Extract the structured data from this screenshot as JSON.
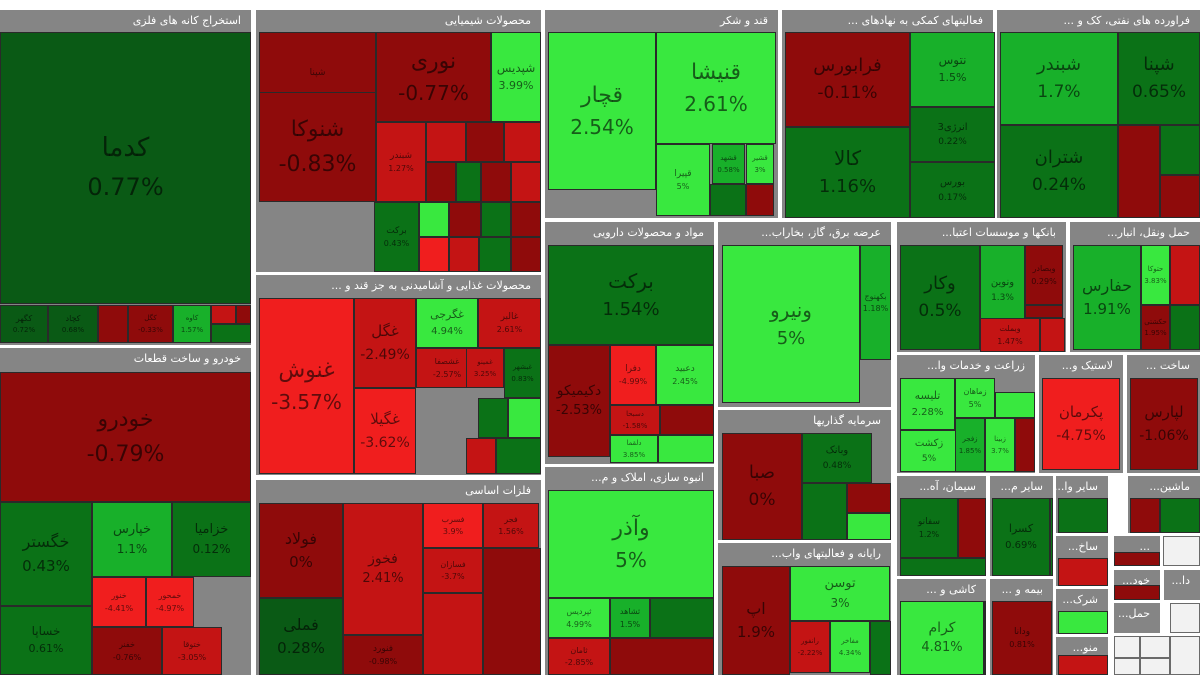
{
  "colors": {
    "up_light": "#39e83f",
    "up_mid": "#18b02a",
    "up_dark": "#0b7217",
    "neutral": "#0a5a15",
    "down_dark": "#8f0b0b",
    "down_mid": "#c41414",
    "down_light": "#f01e1e",
    "header": "#858585",
    "gap": "#ffffff"
  },
  "sectors": [
    {
      "title": "استخراج کانه های فلزی"
    },
    {
      "title": "محصولات شیمیایی"
    },
    {
      "title": "قند و شکر"
    },
    {
      "title": "فعالیتهای کمکی به نهادهای ..."
    },
    {
      "title": "فراورده های نفتی، کک و ..."
    },
    {
      "title": "خودرو و ساخت قطعات"
    },
    {
      "title": "محصولات غذایی و آشامیدنی به جز قند و ..."
    },
    {
      "title": "مواد و محصولات دارویی"
    },
    {
      "title": "عرضه برق، گاز، بخاراب..."
    },
    {
      "title": "بانکها و موسسات اعتبا..."
    },
    {
      "title": "حمل ونقل، انبار..."
    },
    {
      "title": "زراعت و خدمات وا..."
    },
    {
      "title": "لاستیک و..."
    },
    {
      "title": "ساخت ..."
    },
    {
      "title": "فلزات اساسی"
    },
    {
      "title": "سرمایه گذاریها"
    },
    {
      "title": "انبوه سازی، املاک و م..."
    },
    {
      "title": "سیمان، آه..."
    },
    {
      "title": "سایر م..."
    },
    {
      "title": "سایر وا..."
    },
    {
      "title": "ماشین..."
    },
    {
      "title": "رایانه و فعالیتهای واب..."
    },
    {
      "title": "کاشی و ..."
    },
    {
      "title": "بیمه و ..."
    },
    {
      "title": "ساخ..."
    },
    {
      "title": "..."
    },
    {
      "title": "شرک..."
    },
    {
      "title": "خود..."
    },
    {
      "title": "دا..."
    },
    {
      "title": "منو..."
    },
    {
      "title": "حمل..."
    }
  ],
  "chart_data": {
    "type": "heatmap",
    "tiles": [
      {
        "sector": "استخراج کانه های فلزی",
        "symbol": "کدما",
        "pct": "0.77%",
        "value": 0.77,
        "shade": "neutral"
      },
      {
        "sector": "استخراج کانه های فلزی",
        "symbol": "کگهر",
        "pct": "0.72%",
        "value": 0.72,
        "shade": "neutral"
      },
      {
        "sector": "استخراج کانه های فلزی",
        "symbol": "کچاد",
        "pct": "0.68%",
        "value": 0.68,
        "shade": "neutral"
      },
      {
        "sector": "استخراج کانه های فلزی",
        "symbol": "کگل",
        "pct": "-0.33%",
        "value": -0.33,
        "shade": "down_dark"
      },
      {
        "sector": "استخراج کانه های فلزی",
        "symbol": "کاوه",
        "pct": "1.57%",
        "value": 1.57,
        "shade": "up_mid"
      },
      {
        "sector": "محصولات شیمیایی",
        "symbol": "شپنا",
        "pct": "",
        "shade": "down_dark"
      },
      {
        "sector": "محصولات شیمیایی",
        "symbol": "نوری",
        "pct": "-0.77%",
        "value": -0.77,
        "shade": "down_dark"
      },
      {
        "sector": "محصولات شیمیایی",
        "symbol": "شپدیس",
        "pct": "3.99%",
        "value": 3.99,
        "shade": "up_light"
      },
      {
        "sector": "محصولات شیمیایی",
        "symbol": "شنوکا",
        "pct": "-0.83%",
        "value": -0.83,
        "shade": "down_dark"
      },
      {
        "sector": "محصولات شیمیایی",
        "symbol": "شبندر",
        "pct": "1.27%",
        "value": 1.27,
        "shade": "down_mid"
      },
      {
        "sector": "محصولات شیمیایی",
        "symbol": "برکت",
        "pct": "0.43%",
        "value": 0.43,
        "shade": "up_dark"
      },
      {
        "sector": "قند و شکر",
        "symbol": "قچار",
        "pct": "2.54%",
        "value": 2.54,
        "shade": "up_light"
      },
      {
        "sector": "قند و شکر",
        "symbol": "قنیشا",
        "pct": "2.61%",
        "value": 2.61,
        "shade": "up_light"
      },
      {
        "sector": "قند و شکر",
        "symbol": "قپیرا",
        "pct": "5%",
        "value": 5,
        "shade": "up_light"
      },
      {
        "sector": "قند و شکر",
        "symbol": "قشهد",
        "pct": "0.58%",
        "value": 0.58,
        "shade": "up_mid"
      },
      {
        "sector": "قند و شکر",
        "symbol": "قشیر",
        "pct": "3%",
        "value": 3,
        "shade": "up_light"
      },
      {
        "sector": "فعالیتهای کمکی به نهادهای ...",
        "symbol": "فرابورس",
        "pct": "-0.11%",
        "value": -0.11,
        "shade": "down_dark"
      },
      {
        "sector": "فعالیتهای کمکی به نهادهای ...",
        "symbol": "نتوس",
        "pct": "1.5%",
        "value": 1.5,
        "shade": "up_mid"
      },
      {
        "sector": "فعالیتهای کمکی به نهادهای ...",
        "symbol": "کالا",
        "pct": "1.16%",
        "value": 1.16,
        "shade": "up_dark"
      },
      {
        "sector": "فعالیتهای کمکی به نهادهای ...",
        "symbol": "انرژی3",
        "pct": "0.22%",
        "value": 0.22,
        "shade": "up_dark"
      },
      {
        "sector": "فعالیتهای کمکی به نهادهای ...",
        "symbol": "بورس",
        "pct": "0.17%",
        "value": 0.17,
        "shade": "up_dark"
      },
      {
        "sector": "فراورده های نفتی، کک و ...",
        "symbol": "شبندر",
        "pct": "1.7%",
        "value": 1.7,
        "shade": "up_mid"
      },
      {
        "sector": "فراورده های نفتی، کک و ...",
        "symbol": "شپنا",
        "pct": "0.65%",
        "value": 0.65,
        "shade": "up_dark"
      },
      {
        "sector": "فراورده های نفتی، کک و ...",
        "symbol": "شتران",
        "pct": "0.24%",
        "value": 0.24,
        "shade": "up_dark"
      },
      {
        "sector": "خودرو و ساخت قطعات",
        "symbol": "خودرو",
        "pct": "-0.79%",
        "value": -0.79,
        "shade": "down_dark"
      },
      {
        "sector": "خودرو و ساخت قطعات",
        "symbol": "خگستر",
        "pct": "0.43%",
        "value": 0.43,
        "shade": "up_dark"
      },
      {
        "sector": "خودرو و ساخت قطعات",
        "symbol": "خساپا",
        "pct": "0.61%",
        "value": 0.61,
        "shade": "up_dark"
      },
      {
        "sector": "خودرو و ساخت قطعات",
        "symbol": "خپارس",
        "pct": "1.1%",
        "value": 1.1,
        "shade": "up_mid"
      },
      {
        "sector": "خودرو و ساخت قطعات",
        "symbol": "خزامیا",
        "pct": "0.12%",
        "value": 0.12,
        "shade": "up_dark"
      },
      {
        "sector": "خودرو و ساخت قطعات",
        "symbol": "خنور",
        "pct": "-4.41%",
        "value": -4.41,
        "shade": "down_light"
      },
      {
        "sector": "خودرو و ساخت قطعات",
        "symbol": "خمحور",
        "pct": "-4.97%",
        "value": -4.97,
        "shade": "down_light"
      },
      {
        "sector": "خودرو و ساخت قطعات",
        "symbol": "خفنر",
        "pct": "-0.76%",
        "value": -0.76,
        "shade": "down_dark"
      },
      {
        "sector": "خودرو و ساخت قطعات",
        "symbol": "ختوقا",
        "pct": "-3.05%",
        "value": -3.05,
        "shade": "down_mid"
      },
      {
        "sector": "محصولات غذایی و آشامیدنی به جز قند و ...",
        "symbol": "غنوش",
        "pct": "-3.57%",
        "value": -3.57,
        "shade": "down_light"
      },
      {
        "sector": "محصولات غذایی و آشامیدنی به جز قند و ...",
        "symbol": "غگل",
        "pct": "-2.49%",
        "value": -2.49,
        "shade": "down_mid"
      },
      {
        "sector": "محصولات غذایی و آشامیدنی به جز قند و ...",
        "symbol": "غگرجی",
        "pct": "4.94%",
        "value": 4.94,
        "shade": "up_light"
      },
      {
        "sector": "محصولات غذایی و آشامیدنی به جز قند و ...",
        "symbol": "غالبر",
        "pct": "2.61%",
        "value": 2.61,
        "shade": "down_mid"
      },
      {
        "sector": "محصولات غذایی و آشامیدنی به جز قند و ...",
        "symbol": "غگیلا",
        "pct": "-3.62%",
        "value": -3.62,
        "shade": "down_light"
      },
      {
        "sector": "محصولات غذایی و آشامیدنی به جز قند و ...",
        "symbol": "غشصفا",
        "pct": "-2.57%",
        "value": -2.57,
        "shade": "down_mid"
      },
      {
        "sector": "محصولات غذایی و آشامیدنی به جز قند و ...",
        "symbol": "غمینو",
        "pct": "3.25%",
        "value": 3.25,
        "shade": "down_mid"
      },
      {
        "sector": "محصولات غذایی و آشامیدنی به جز قند و ...",
        "symbol": "غبشهر",
        "pct": "0.83%",
        "value": 0.83,
        "shade": "up_dark"
      },
      {
        "sector": "مواد و محصولات دارویی",
        "symbol": "برکت",
        "pct": "1.54%",
        "value": 1.54,
        "shade": "up_dark"
      },
      {
        "sector": "مواد و محصولات دارویی",
        "symbol": "دکیمیکو",
        "pct": "-2.53%",
        "value": -2.53,
        "shade": "down_dark"
      },
      {
        "sector": "مواد و محصولات دارویی",
        "symbol": "دفرا",
        "pct": "-4.99%",
        "value": -4.99,
        "shade": "down_light"
      },
      {
        "sector": "مواد و محصولات دارویی",
        "symbol": "دعبید",
        "pct": "2.45%",
        "value": 2.45,
        "shade": "up_light"
      },
      {
        "sector": "مواد و محصولات دارویی",
        "symbol": "دسبحا",
        "pct": "-1.58%",
        "value": -1.58,
        "shade": "down_mid"
      },
      {
        "sector": "مواد و محصولات دارویی",
        "symbol": "دلقما",
        "pct": "3.85%",
        "value": 3.85,
        "shade": "up_light"
      },
      {
        "sector": "عرضه برق، گاز، بخاراب...",
        "symbol": "ونیرو",
        "pct": "5%",
        "value": 5,
        "shade": "up_light"
      },
      {
        "sector": "عرضه برق، گاز، بخاراب...",
        "symbol": "بکهنوج",
        "pct": "1.18%",
        "value": 1.18,
        "shade": "up_mid"
      },
      {
        "sector": "بانکها و موسسات اعتبا...",
        "symbol": "وکار",
        "pct": "0.5%",
        "value": 0.5,
        "shade": "up_dark"
      },
      {
        "sector": "بانکها و موسسات اعتبا...",
        "symbol": "ونوین",
        "pct": "1.3%",
        "value": 1.3,
        "shade": "up_mid"
      },
      {
        "sector": "بانکها و موسسات اعتبا...",
        "symbol": "وبصادر",
        "pct": "0.29%",
        "value": 0.29,
        "shade": "down_dark"
      },
      {
        "sector": "بانکها و موسسات اعتبا...",
        "symbol": "وبملت",
        "pct": "1.47%",
        "value": 1.47,
        "shade": "down_mid"
      },
      {
        "sector": "حمل ونقل، انبار...",
        "symbol": "حفارس",
        "pct": "1.91%",
        "value": 1.91,
        "shade": "up_mid"
      },
      {
        "sector": "حمل ونقل، انبار...",
        "symbol": "حتوکا",
        "pct": "3.83%",
        "value": 3.83,
        "shade": "up_light"
      },
      {
        "sector": "حمل ونقل، انبار...",
        "symbol": "حکشتی",
        "pct": "1.95%",
        "value": 1.95,
        "shade": "down_dark"
      },
      {
        "sector": "زراعت و خدمات وا...",
        "symbol": "تلیسه",
        "pct": "2.28%",
        "value": 2.28,
        "shade": "up_light"
      },
      {
        "sector": "زراعت و خدمات وا...",
        "symbol": "زماهان",
        "pct": "5%",
        "value": 5,
        "shade": "up_light"
      },
      {
        "sector": "زراعت و خدمات وا...",
        "symbol": "زکشت",
        "pct": "5%",
        "value": 5,
        "shade": "up_light"
      },
      {
        "sector": "زراعت و خدمات وا...",
        "symbol": "زفجر",
        "pct": "1.85%",
        "value": 1.85,
        "shade": "up_mid"
      },
      {
        "sector": "زراعت و خدمات وا...",
        "symbol": "زبینا",
        "pct": "3.7%",
        "value": 3.7,
        "shade": "up_light"
      },
      {
        "sector": "لاستیک و...",
        "symbol": "پکرمان",
        "pct": "-4.75%",
        "value": -4.75,
        "shade": "down_light"
      },
      {
        "sector": "ساخت ...",
        "symbol": "لپارس",
        "pct": "-1.06%",
        "value": -1.06,
        "shade": "down_dark"
      },
      {
        "sector": "فلزات اساسی",
        "symbol": "فولاد",
        "pct": "0%",
        "value": 0,
        "shade": "down_dark"
      },
      {
        "sector": "فلزات اساسی",
        "symbol": "فخوز",
        "pct": "2.41%",
        "value": 2.41,
        "shade": "down_mid"
      },
      {
        "sector": "فلزات اساسی",
        "symbol": "فسرب",
        "pct": "3.9%",
        "value": 3.9,
        "shade": "down_light"
      },
      {
        "sector": "فلزات اساسی",
        "symbol": "فجر",
        "pct": "1.56%",
        "value": 1.56,
        "shade": "down_mid"
      },
      {
        "sector": "فلزات اساسی",
        "symbol": "فملی",
        "pct": "0.28%",
        "value": 0.28,
        "shade": "neutral"
      },
      {
        "sector": "فلزات اساسی",
        "symbol": "فنورد",
        "pct": "-0.98%",
        "value": -0.98,
        "shade": "down_dark"
      },
      {
        "sector": "فلزات اساسی",
        "symbol": "فسازان",
        "pct": "-3.7%",
        "value": -3.7,
        "shade": "down_mid"
      },
      {
        "sector": "سرمایه گذاریها",
        "symbol": "صبا",
        "pct": "0%",
        "value": 0,
        "shade": "down_dark"
      },
      {
        "sector": "سرمایه گذاریها",
        "symbol": "وبانک",
        "pct": "0.48%",
        "value": 0.48,
        "shade": "up_dark"
      },
      {
        "sector": "انبوه سازی، املاک و م...",
        "symbol": "وآذر",
        "pct": "5%",
        "value": 5,
        "shade": "up_light"
      },
      {
        "sector": "انبوه سازی، املاک و م...",
        "symbol": "ثپردیس",
        "pct": "4.99%",
        "value": 4.99,
        "shade": "up_light"
      },
      {
        "sector": "انبوه سازی، املاک و م...",
        "symbol": "ثشاهد",
        "pct": "1.5%",
        "value": 1.5,
        "shade": "up_mid"
      },
      {
        "sector": "انبوه سازی، املاک و م...",
        "symbol": "ثامان",
        "pct": "-2.85%",
        "value": -2.85,
        "shade": "down_mid"
      },
      {
        "sector": "سیمان، آه...",
        "symbol": "سفانو",
        "pct": "1.2%",
        "value": 1.2,
        "shade": "up_dark"
      },
      {
        "sector": "سایر م...",
        "symbol": "کسرا",
        "pct": "0.69%",
        "value": 0.69,
        "shade": "up_dark"
      },
      {
        "sector": "رایانه و فعالیتهای واب...",
        "symbol": "اپ",
        "pct": "1.9%",
        "value": 1.9,
        "shade": "down_dark"
      },
      {
        "sector": "رایانه و فعالیتهای واب...",
        "symbol": "توسن",
        "pct": "3%",
        "value": 3,
        "shade": "up_light"
      },
      {
        "sector": "رایانه و فعالیتهای واب...",
        "symbol": "رانفور",
        "pct": "-2.22%",
        "value": -2.22,
        "shade": "down_mid"
      },
      {
        "sector": "رایانه و فعالیتهای واب...",
        "symbol": "مفاخر",
        "pct": "4.34%",
        "value": 4.34,
        "shade": "up_light"
      },
      {
        "sector": "کاشی و ...",
        "symbol": "کرام",
        "pct": "4.81%",
        "value": 4.81,
        "shade": "up_light"
      },
      {
        "sector": "بیمه و ...",
        "symbol": "ودانا",
        "pct": "0.81%",
        "value": 0.81,
        "shade": "down_dark"
      }
    ]
  }
}
